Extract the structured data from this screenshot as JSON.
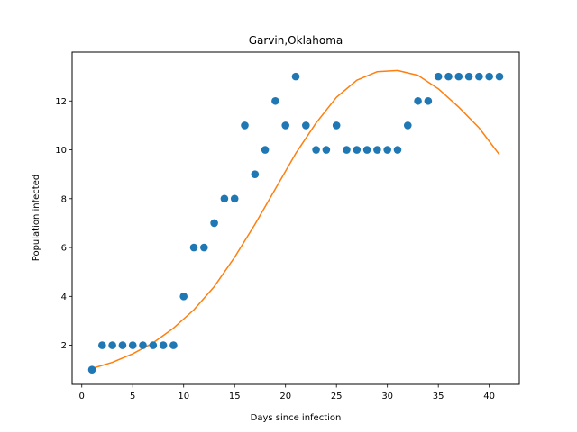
{
  "chart_data": {
    "type": "scatter",
    "title": "Garvin,Oklahoma",
    "xlabel": "Days since infection",
    "ylabel": "Population infected",
    "xlim": [
      -0.95,
      42.95
    ],
    "ylim": [
      0.4,
      14.0
    ],
    "xticks": [
      0,
      5,
      10,
      15,
      20,
      25,
      30,
      35,
      40
    ],
    "yticks": [
      2,
      4,
      6,
      8,
      10,
      12
    ],
    "grid": false,
    "series": [
      {
        "kind": "scatter",
        "color": "#1f77b4",
        "x": [
          1,
          2,
          3,
          4,
          5,
          6,
          7,
          8,
          9,
          10,
          11,
          12,
          13,
          14,
          15,
          16,
          17,
          18,
          19,
          20,
          21,
          22,
          23,
          24,
          25,
          26,
          27,
          28,
          29,
          30,
          31,
          32,
          33,
          34,
          35,
          36,
          37,
          38,
          39,
          40,
          41
        ],
        "y": [
          1,
          2,
          2,
          2,
          2,
          2,
          2,
          2,
          2,
          4,
          6,
          6,
          7,
          8,
          8,
          11,
          9,
          10,
          12,
          11,
          13,
          11,
          10,
          10,
          11,
          10,
          10,
          10,
          10,
          10,
          10,
          11,
          12,
          12,
          13,
          13,
          13,
          13,
          13,
          13,
          13
        ]
      },
      {
        "kind": "line",
        "color": "#ff7f0e",
        "x": [
          1,
          3,
          5,
          7,
          9,
          11,
          13,
          15,
          17,
          19,
          21,
          23,
          25,
          27,
          29,
          31,
          33,
          35,
          37,
          39,
          41
        ],
        "y": [
          1.05,
          1.3,
          1.65,
          2.1,
          2.7,
          3.45,
          4.4,
          5.6,
          6.95,
          8.4,
          9.85,
          11.1,
          12.15,
          12.85,
          13.2,
          13.25,
          13.05,
          12.5,
          11.75,
          10.9,
          9.8
        ]
      }
    ]
  }
}
